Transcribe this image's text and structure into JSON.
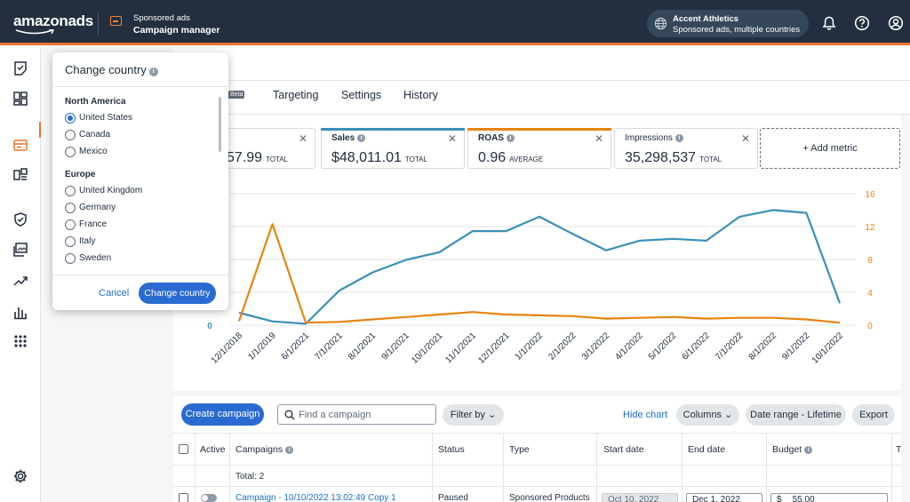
{
  "header": {
    "logo": "amazonads",
    "app_subtitle": "Sponsored ads",
    "app_title": "Campaign manager",
    "account_name": "Accent Athletics",
    "account_sub": "Sponsored ads, multiple countries",
    "accent": "#e8742c"
  },
  "tabs": [
    {
      "label": "s"
    },
    {
      "label": "Targeting"
    },
    {
      "label": "Settings"
    },
    {
      "label": "History"
    }
  ],
  "beta_badge": "Beta",
  "metrics": [
    {
      "name": "",
      "value": "57.99",
      "unit": "TOTAL",
      "color": "#ffffff"
    },
    {
      "name": "Sales",
      "value": "$48,011.01",
      "unit": "TOTAL",
      "color": "#3b8fb8"
    },
    {
      "name": "ROAS",
      "value": "0.96",
      "unit": "AVERAGE",
      "color": "#e8840e"
    },
    {
      "name": "Impressions",
      "value": "35,298,537",
      "unit": "TOTAL",
      "color": "#ffffff"
    }
  ],
  "add_metric": "+ Add metric",
  "chart_data": {
    "type": "line",
    "x": [
      "12/1/2018",
      "1/1/2019",
      "6/1/2021",
      "7/1/2021",
      "8/1/2021",
      "9/1/2021",
      "10/1/2021",
      "11/1/2021",
      "12/1/2021",
      "1/1/2022",
      "2/1/2022",
      "3/1/2022",
      "4/1/2022",
      "5/1/2022",
      "6/1/2022",
      "7/1/2022",
      "8/1/2022",
      "9/1/2022",
      "10/1/2022"
    ],
    "series": [
      {
        "name": "Sales",
        "axis": "left",
        "color": "#3b8fb8",
        "values": [
          1300,
          400,
          150,
          3600,
          5500,
          6800,
          7600,
          9800,
          9800,
          11300,
          9500,
          7800,
          8800,
          9000,
          8800,
          11300,
          12000,
          11700,
          2300
        ]
      },
      {
        "name": "ROAS",
        "axis": "right",
        "color": "#e8840e",
        "values": [
          0.5,
          12.3,
          0.3,
          0.4,
          0.7,
          1.0,
          1.3,
          1.6,
          1.3,
          1.2,
          1.1,
          0.8,
          0.9,
          1.0,
          0.8,
          0.9,
          0.9,
          0.7,
          0.3
        ]
      }
    ],
    "yleft_ticks": [
      "0"
    ],
    "yright_ticks": [
      "16",
      "12",
      "8",
      "4",
      "0"
    ],
    "yleft_lim": [
      0,
      13700
    ],
    "yright_lim": [
      0,
      16
    ],
    "grid": true
  },
  "toolbar": {
    "create": "Create campaign",
    "search_placeholder": "Find a campaign",
    "filter": "Filter by",
    "hide_chart": "Hide chart",
    "columns": "Columns",
    "date_range": "Date range - Lifetime",
    "export": "Export"
  },
  "table": {
    "headers": [
      "Active",
      "Campaigns",
      "Status",
      "Type",
      "Start date",
      "End date",
      "Budget",
      "T"
    ],
    "total": "Total: 2",
    "row": {
      "campaign": "Campaign - 10/10/2022 13:02:49 Copy 1",
      "status": "Paused",
      "type": "Sponsored Products",
      "start": "Oct 10, 2022",
      "end": "Dec 1, 2022",
      "budget_symbol": "$",
      "budget": "55.00"
    }
  },
  "popover": {
    "title": "Change country",
    "groups": [
      {
        "name": "North America",
        "options": [
          "United States",
          "Canada",
          "Mexico"
        ],
        "selected": "United States"
      },
      {
        "name": "Europe",
        "options": [
          "United Kingdom",
          "Germany",
          "France",
          "Italy",
          "Sweden"
        ]
      }
    ],
    "cancel": "Cancel",
    "confirm": "Change country"
  }
}
